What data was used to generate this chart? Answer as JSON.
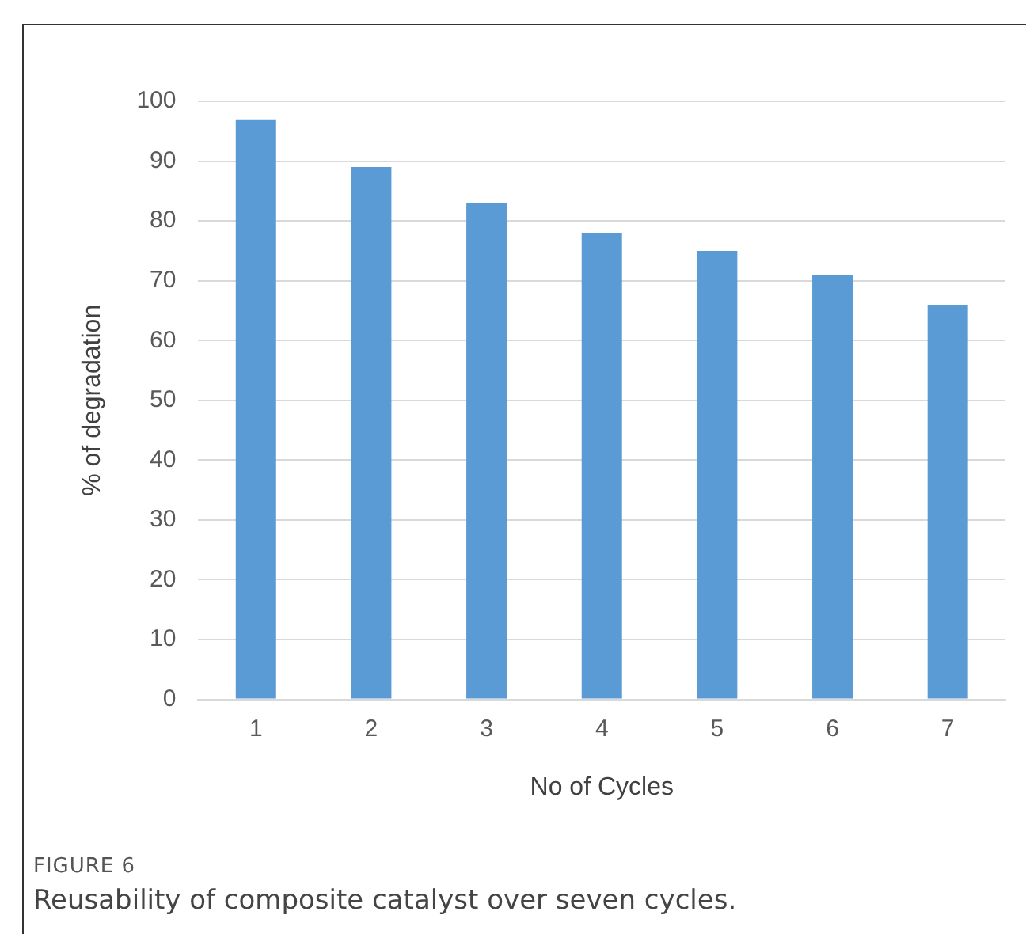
{
  "chart_data": {
    "type": "bar",
    "xlabel": "No of Cycles",
    "ylabel": "% of degradation",
    "categories": [
      "1",
      "2",
      "3",
      "4",
      "5",
      "6",
      "7"
    ],
    "values": [
      97,
      89,
      83,
      78,
      75,
      71,
      66
    ],
    "color": "#5b9bd5",
    "ylim": [
      0,
      100
    ],
    "yticks": [
      0,
      10,
      20,
      30,
      40,
      50,
      60,
      70,
      80,
      90,
      100
    ],
    "grid": "y",
    "legend": false,
    "annotations": [
      "FIGURE 6",
      "Reusability of composite catalyst over seven cycles."
    ]
  }
}
